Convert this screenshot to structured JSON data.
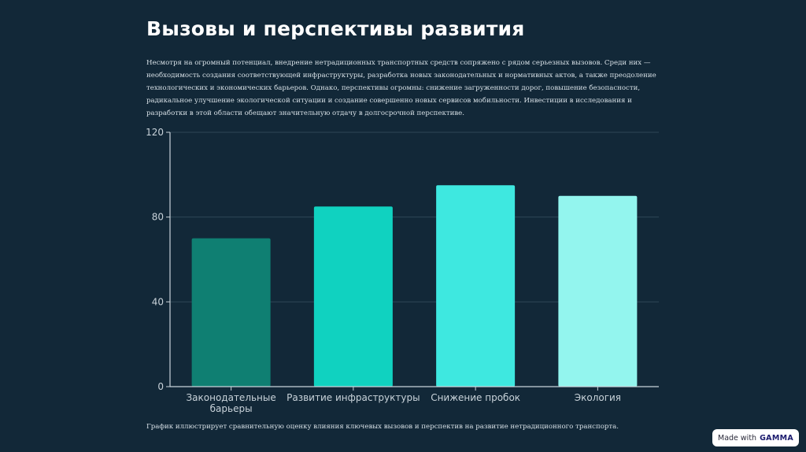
{
  "slide": {
    "title": "Вызовы и перспективы развития",
    "intro": "Несмотря на огромный потенциал, внедрение нетрадиционных транспортных средств сопряжено с рядом серьезных вызовов. Среди них — необходимость создания соответствующей инфраструктуры, разработка новых законодательных и нормативных актов, а также преодоление технологических и экономических барьеров. Однако, перспективы огромны: снижение загруженности дорог, повышение безопасности, радикальное улучшение экологической ситуации и создание совершенно новых сервисов мобильности. Инвестиции в исследования и разработки в этой области обещают значительную отдачу в долгосрочной перспективе.",
    "caption": "График иллюстрирует сравнительную оценку влияния ключевых вызовов и перспектив на развитие нетрадиционного транспорта."
  },
  "badge": {
    "prefix": "Made with",
    "brand": "GAMMA"
  },
  "chart_data": {
    "type": "bar",
    "categories": [
      [
        "Законодательные",
        "барьеры"
      ],
      [
        "Развитие инфраструктуры"
      ],
      [
        "Снижение пробок"
      ],
      [
        "Экология"
      ]
    ],
    "values": [
      70,
      85,
      95,
      90
    ],
    "colors": [
      "#0f7f72",
      "#10d2c0",
      "#3ee8e0",
      "#93f5ee"
    ],
    "yticks": [
      0,
      40,
      80,
      120
    ],
    "ylim": [
      0,
      120
    ],
    "title": "",
    "xlabel": "",
    "ylabel": ""
  }
}
